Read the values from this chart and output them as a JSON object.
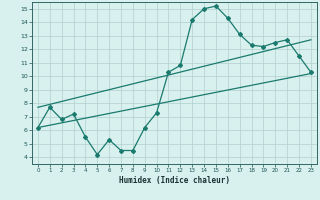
{
  "line1_x": [
    0,
    1,
    2,
    3,
    4,
    5,
    6,
    7,
    8,
    9,
    10,
    11,
    12,
    13,
    14,
    15,
    16,
    17,
    18,
    19,
    20,
    21,
    22,
    23
  ],
  "line1_y": [
    6.2,
    7.7,
    6.8,
    7.2,
    5.5,
    4.2,
    5.3,
    4.5,
    4.5,
    6.2,
    7.3,
    10.3,
    10.8,
    14.2,
    15.0,
    15.2,
    14.3,
    13.1,
    12.3,
    12.2,
    12.5,
    12.7,
    11.5,
    10.3
  ],
  "line2_x": [
    0,
    23
  ],
  "line2_y": [
    6.2,
    10.2
  ],
  "line3_x": [
    0,
    23
  ],
  "line3_y": [
    7.7,
    12.7
  ],
  "line_color": "#1a7a6e",
  "bg_color": "#d8f0ee",
  "grid_color": "#b0d0ce",
  "xlabel": "Humidex (Indice chaleur)",
  "xlim": [
    -0.5,
    23.5
  ],
  "ylim": [
    3.5,
    15.5
  ],
  "yticks": [
    4,
    5,
    6,
    7,
    8,
    9,
    10,
    11,
    12,
    13,
    14,
    15
  ],
  "xticks": [
    0,
    1,
    2,
    3,
    4,
    5,
    6,
    7,
    8,
    9,
    10,
    11,
    12,
    13,
    14,
    15,
    16,
    17,
    18,
    19,
    20,
    21,
    22,
    23
  ]
}
